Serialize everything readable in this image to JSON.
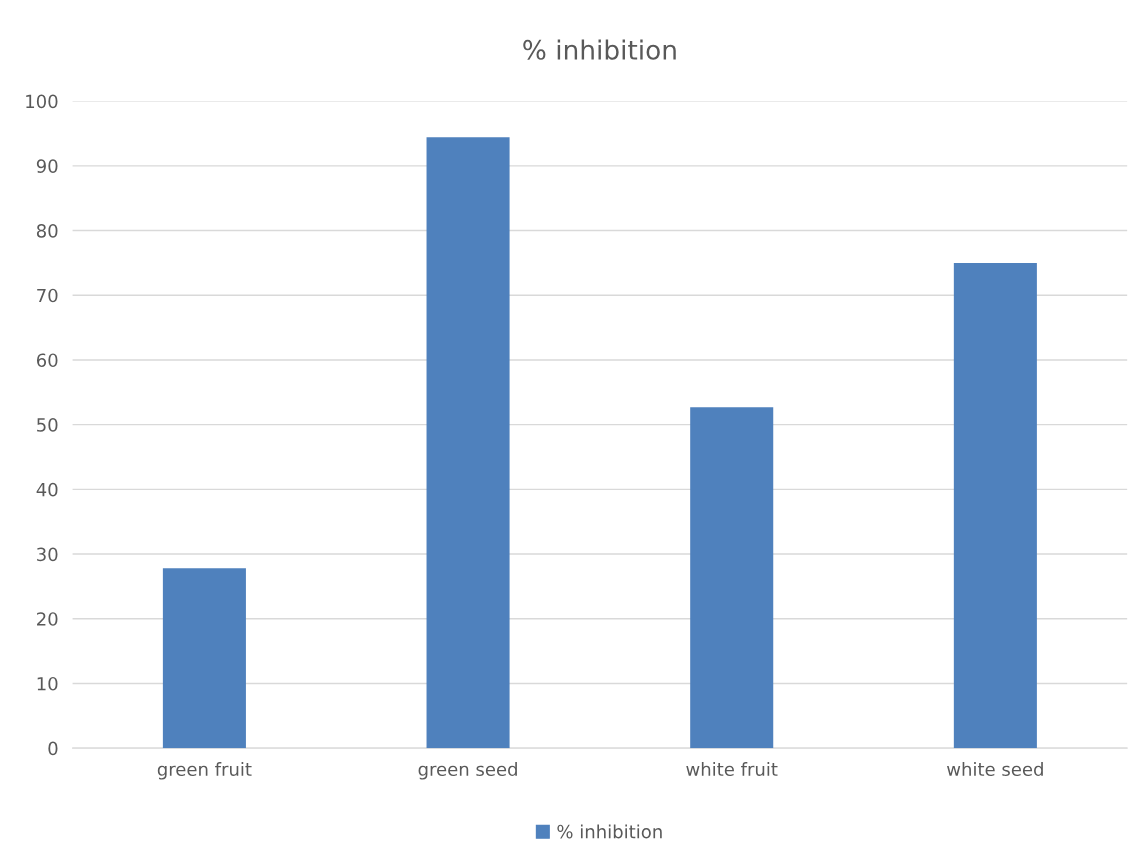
{
  "chart_data": {
    "type": "bar",
    "title": "% inhibition",
    "categories": [
      "green fruit",
      "green seed",
      "white fruit",
      "white seed"
    ],
    "series": [
      {
        "name": "% inhibition",
        "color": "#4f81bd",
        "values": [
          27.8,
          94.4,
          52.7,
          75.0
        ]
      }
    ],
    "ylim": [
      0,
      100
    ],
    "yticks": [
      0,
      10,
      20,
      30,
      40,
      50,
      60,
      70,
      80,
      90,
      100
    ],
    "grid": "y",
    "legend": "bottom"
  }
}
